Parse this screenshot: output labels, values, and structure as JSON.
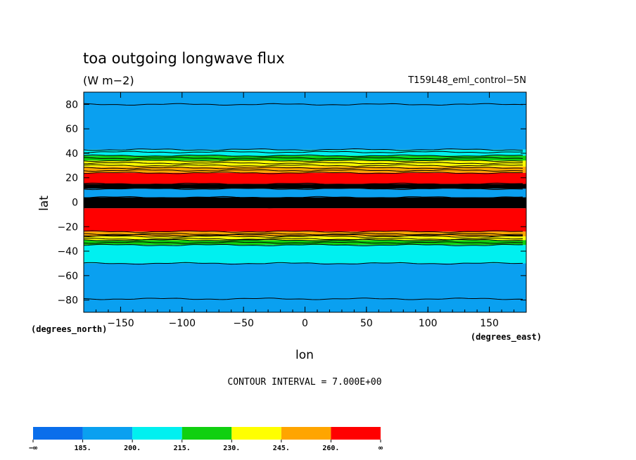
{
  "chart_data": {
    "type": "heatmap",
    "title": "toa outgoing longwave flux",
    "units": "(W m−2)",
    "run_label": "T159L48_eml_control−5N",
    "xlabel": "lon",
    "ylabel": "lat",
    "x_units_label": "(degrees_east)",
    "y_units_label": "(degrees_north)",
    "xlim": [
      -180,
      180
    ],
    "ylim": [
      -90,
      90
    ],
    "xticks": [
      -150,
      -100,
      -50,
      0,
      50,
      100,
      150
    ],
    "xtick_labels": [
      "−150",
      "−100",
      "−50",
      "0",
      "50",
      "100",
      "150"
    ],
    "yticks": [
      80,
      60,
      40,
      20,
      0,
      -20,
      -40,
      -60,
      -80
    ],
    "ytick_labels": [
      "80",
      "60",
      "40",
      "20",
      "0",
      "−20",
      "−40",
      "−60",
      "−80"
    ],
    "contour_interval_text": "CONTOUR INTERVAL = 7.000E+00",
    "contour_interval": 7.0,
    "colorbar": {
      "levels": [
        185,
        200,
        215,
        230,
        245,
        260
      ],
      "tick_labels": [
        "−∞",
        "185.",
        "200.",
        "215.",
        "230.",
        "245.",
        "260.",
        "∞"
      ],
      "colors": [
        "#0a6eeb",
        "#0aa0f0",
        "#00f0f0",
        "#10d010",
        "#ffff00",
        "#ffa500",
        "#ff0000"
      ]
    },
    "latitude_bands": [
      {
        "lat_from": 90,
        "lat_to": 43,
        "level": "185-200",
        "color": "#0aa0f0"
      },
      {
        "lat_from": 43,
        "lat_to": 38,
        "level": "200-215",
        "color": "#00f0f0"
      },
      {
        "lat_from": 38,
        "lat_to": 34,
        "level": "215-230",
        "color": "#10d010"
      },
      {
        "lat_from": 34,
        "lat_to": 29,
        "level": "230-245",
        "color": "#ffff00"
      },
      {
        "lat_from": 29,
        "lat_to": 24,
        "level": "245-260",
        "color": "#ffa500"
      },
      {
        "lat_from": 24,
        "lat_to": 15,
        "level": ">260",
        "color": "#ff0000"
      },
      {
        "lat_from": 15,
        "lat_to": 11,
        "level": "dense contours",
        "color": "#000000"
      },
      {
        "lat_from": 11,
        "lat_to": 4,
        "level": "185-200",
        "color": "#0aa0f0"
      },
      {
        "lat_from": 4,
        "lat_to": -5,
        "level": "dense contours",
        "color": "#000000"
      },
      {
        "lat_from": -5,
        "lat_to": -24,
        "level": ">260",
        "color": "#ff0000"
      },
      {
        "lat_from": -24,
        "lat_to": -28,
        "level": "245-260",
        "color": "#ffa500"
      },
      {
        "lat_from": -28,
        "lat_to": -31,
        "level": "230-245",
        "color": "#ffff00"
      },
      {
        "lat_from": -31,
        "lat_to": -35,
        "level": "215-230",
        "color": "#10d010"
      },
      {
        "lat_from": -35,
        "lat_to": -50,
        "level": "200-215",
        "color": "#00f0f0"
      },
      {
        "lat_from": -50,
        "lat_to": -90,
        "level": "185-200",
        "color": "#0aa0f0"
      }
    ],
    "contour_lats": [
      80,
      43,
      41,
      38,
      36,
      34,
      32,
      30,
      28,
      26,
      24,
      15,
      13,
      11,
      4,
      2,
      0,
      -2,
      -4,
      -24,
      -26,
      -27,
      -28,
      -30,
      -31,
      -33,
      -35,
      -50,
      -79
    ]
  }
}
